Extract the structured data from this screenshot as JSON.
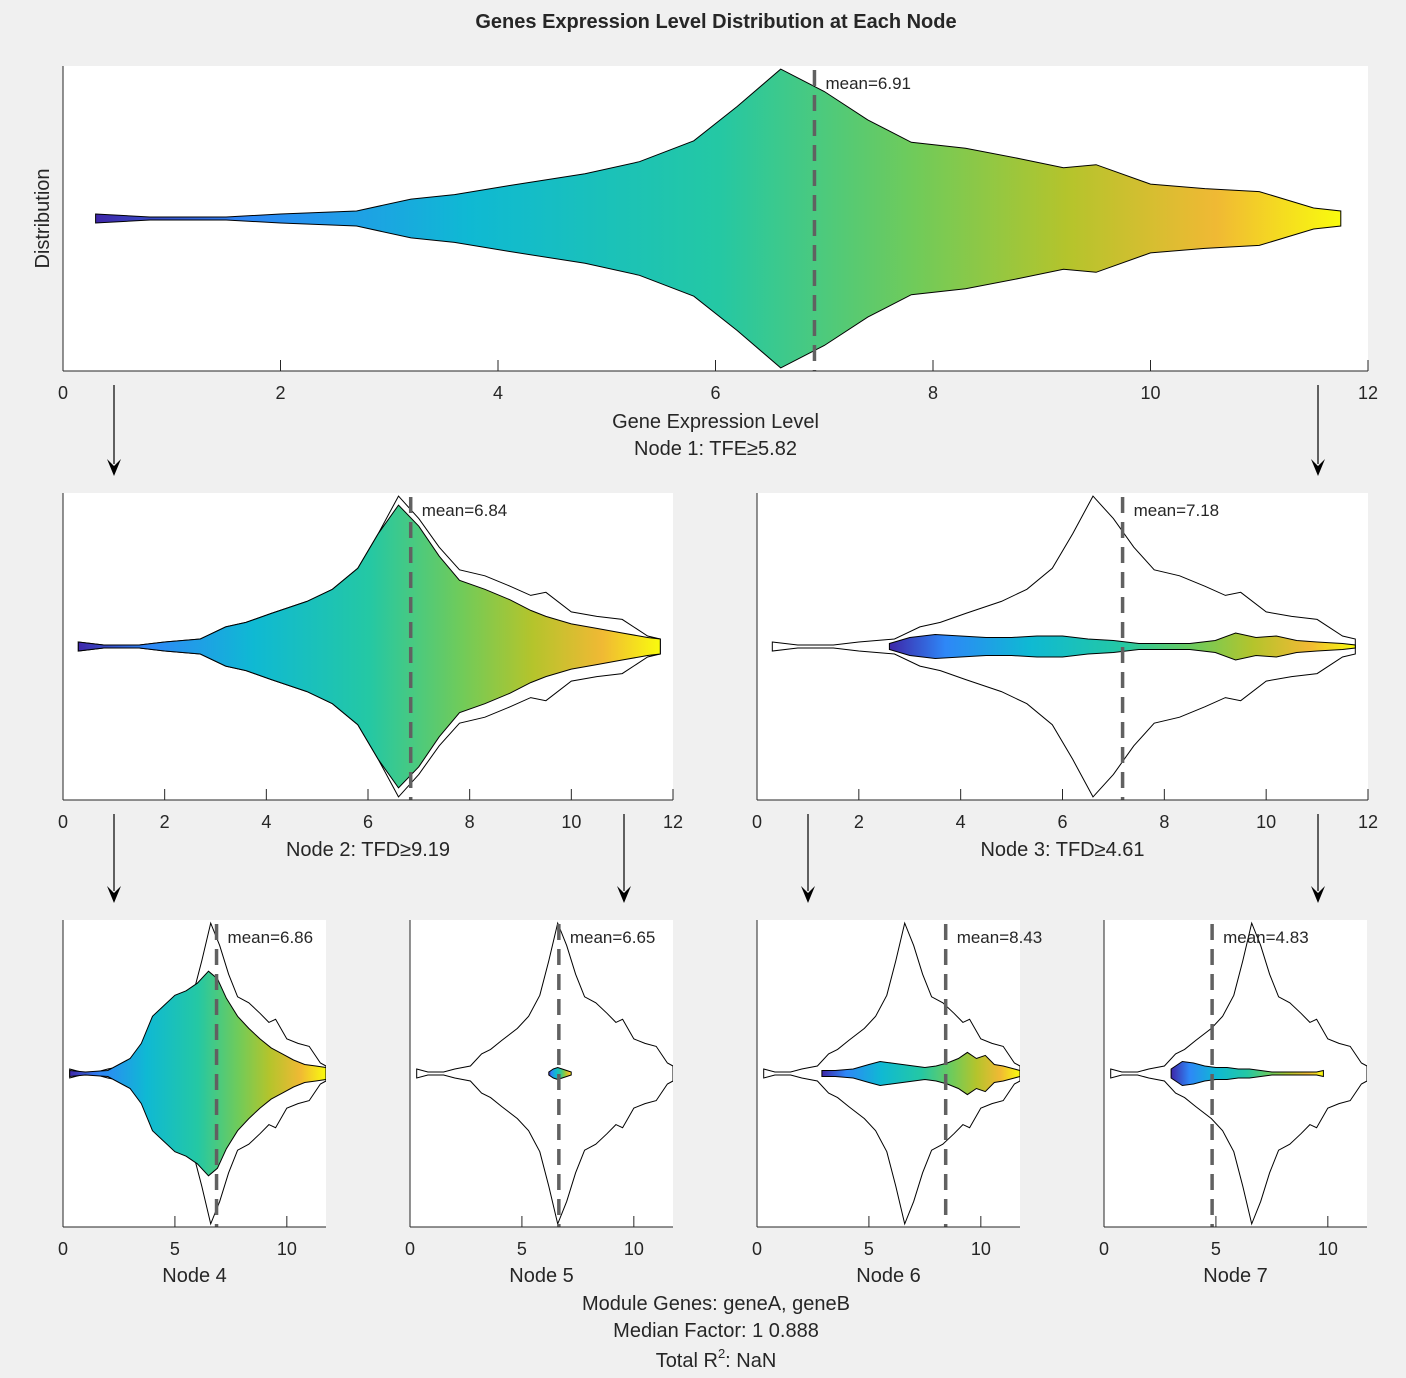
{
  "figure": {
    "title": "Genes Expression Level Distribution at Each Node",
    "footer": {
      "module_genes": "Module Genes: geneA, geneB",
      "median_factor": "Median Factor: 1      0.888",
      "total_r2_prefix": "Total R",
      "total_r2_sup": "2",
      "total_r2_suffix": ": NaN"
    },
    "colors": {
      "background": "#f0f0f0",
      "axes_bg": "#ffffff",
      "mean_line": "#616161",
      "outline": "#000000",
      "colormap": [
        "#3e26a8",
        "#2e87f7",
        "#0fb9d3",
        "#24c8a4",
        "#71cb59",
        "#b4c42c",
        "#f0b934",
        "#f9fb0e"
      ]
    }
  },
  "chart_data": [
    {
      "id": "node1",
      "type": "violin",
      "ylabel": "Distribution",
      "xlabel": "Gene Expression Level",
      "node_label": "Node 1: TFE≥5.82",
      "xlim": [
        0,
        12
      ],
      "xticks": [
        0,
        2,
        4,
        6,
        8,
        10,
        12
      ],
      "filled_range": [
        0.3,
        11.75
      ],
      "mean": 6.91,
      "mean_label": "mean=6.91",
      "show_parent_outline": false,
      "density": [
        [
          0.3,
          0.03
        ],
        [
          0.8,
          0.01
        ],
        [
          1.5,
          0.01
        ],
        [
          2.0,
          0.03
        ],
        [
          2.7,
          0.05
        ],
        [
          3.2,
          0.13
        ],
        [
          3.6,
          0.16
        ],
        [
          4.1,
          0.22
        ],
        [
          4.8,
          0.3
        ],
        [
          5.3,
          0.38
        ],
        [
          5.8,
          0.52
        ],
        [
          6.2,
          0.75
        ],
        [
          6.6,
          1.0
        ],
        [
          7.0,
          0.85
        ],
        [
          7.4,
          0.66
        ],
        [
          7.8,
          0.51
        ],
        [
          8.3,
          0.47
        ],
        [
          8.8,
          0.4
        ],
        [
          9.2,
          0.34
        ],
        [
          9.5,
          0.36
        ],
        [
          10.0,
          0.23
        ],
        [
          10.5,
          0.2
        ],
        [
          11.0,
          0.18
        ],
        [
          11.5,
          0.07
        ],
        [
          11.75,
          0.05
        ]
      ]
    },
    {
      "id": "node2",
      "type": "violin",
      "node_label": "Node 2: TFD≥9.19",
      "xlim": [
        0,
        12
      ],
      "xticks": [
        0,
        2,
        4,
        6,
        8,
        10,
        12
      ],
      "filled_range": [
        0.3,
        11.75
      ],
      "mean": 6.84,
      "mean_label": "mean=6.84",
      "show_parent_outline": true,
      "density": [
        [
          0.3,
          0.03
        ],
        [
          0.8,
          0.01
        ],
        [
          1.5,
          0.01
        ],
        [
          2.0,
          0.03
        ],
        [
          2.7,
          0.05
        ],
        [
          3.2,
          0.13
        ],
        [
          3.6,
          0.16
        ],
        [
          4.1,
          0.22
        ],
        [
          4.8,
          0.3
        ],
        [
          5.3,
          0.38
        ],
        [
          5.8,
          0.52
        ],
        [
          6.2,
          0.75
        ],
        [
          6.6,
          0.94
        ],
        [
          7.0,
          0.8
        ],
        [
          7.4,
          0.6
        ],
        [
          7.8,
          0.44
        ],
        [
          8.3,
          0.38
        ],
        [
          8.8,
          0.31
        ],
        [
          9.2,
          0.24
        ],
        [
          9.5,
          0.2
        ],
        [
          10.0,
          0.15
        ],
        [
          10.5,
          0.12
        ],
        [
          11.0,
          0.09
        ],
        [
          11.5,
          0.06
        ],
        [
          11.75,
          0.05
        ]
      ]
    },
    {
      "id": "node3",
      "type": "violin",
      "node_label": "Node 3: TFD≥4.61",
      "xlim": [
        0,
        12
      ],
      "xticks": [
        0,
        2,
        4,
        6,
        8,
        10,
        12
      ],
      "filled_range": [
        2.6,
        11.75
      ],
      "mean": 7.18,
      "mean_label": "mean=7.18",
      "show_parent_outline": true,
      "density": [
        [
          2.6,
          0.02
        ],
        [
          3.0,
          0.06
        ],
        [
          3.5,
          0.08
        ],
        [
          4.0,
          0.07
        ],
        [
          4.5,
          0.06
        ],
        [
          5.0,
          0.06
        ],
        [
          5.5,
          0.07
        ],
        [
          6.0,
          0.07
        ],
        [
          6.5,
          0.05
        ],
        [
          7.0,
          0.04
        ],
        [
          7.5,
          0.02
        ],
        [
          8.0,
          0.02
        ],
        [
          8.5,
          0.02
        ],
        [
          9.0,
          0.04
        ],
        [
          9.4,
          0.09
        ],
        [
          9.8,
          0.06
        ],
        [
          10.2,
          0.07
        ],
        [
          10.6,
          0.04
        ],
        [
          11.0,
          0.03
        ],
        [
          11.5,
          0.02
        ],
        [
          11.75,
          0.01
        ]
      ]
    },
    {
      "id": "node4",
      "type": "violin",
      "node_label": "Node 4",
      "xlim": [
        0,
        11.75
      ],
      "xticks": [
        0,
        5,
        10
      ],
      "filled_range": [
        0.3,
        11.75
      ],
      "mean": 6.86,
      "mean_label": "mean=6.86",
      "show_parent_outline": true,
      "density": [
        [
          0.3,
          0.02
        ],
        [
          1.0,
          0.01
        ],
        [
          2.0,
          0.02
        ],
        [
          3.0,
          0.1
        ],
        [
          3.5,
          0.2
        ],
        [
          4.0,
          0.38
        ],
        [
          4.5,
          0.45
        ],
        [
          5.0,
          0.52
        ],
        [
          5.5,
          0.55
        ],
        [
          6.0,
          0.6
        ],
        [
          6.5,
          0.68
        ],
        [
          6.9,
          0.63
        ],
        [
          7.3,
          0.5
        ],
        [
          7.8,
          0.38
        ],
        [
          8.3,
          0.3
        ],
        [
          8.8,
          0.23
        ],
        [
          9.3,
          0.17
        ],
        [
          9.8,
          0.13
        ],
        [
          10.3,
          0.09
        ],
        [
          10.8,
          0.06
        ],
        [
          11.3,
          0.05
        ],
        [
          11.75,
          0.04
        ]
      ]
    },
    {
      "id": "node5",
      "type": "violin",
      "node_label": "Node 5",
      "xlim": [
        0,
        11.75
      ],
      "xticks": [
        0,
        5,
        10
      ],
      "filled_range": [
        6.2,
        7.2
      ],
      "mean": 6.65,
      "mean_label": "mean=6.65",
      "show_parent_outline": true,
      "density": [
        [
          6.2,
          0.01
        ],
        [
          6.4,
          0.03
        ],
        [
          6.6,
          0.04
        ],
        [
          6.8,
          0.03
        ],
        [
          7.0,
          0.02
        ],
        [
          7.2,
          0.01
        ]
      ]
    },
    {
      "id": "node6",
      "type": "violin",
      "node_label": "Node 6",
      "xlim": [
        0,
        11.75
      ],
      "xticks": [
        0,
        5,
        10
      ],
      "filled_range": [
        2.9,
        11.75
      ],
      "mean": 8.43,
      "mean_label": "mean=8.43",
      "show_parent_outline": true,
      "density": [
        [
          2.9,
          0.02
        ],
        [
          3.5,
          0.02
        ],
        [
          4.3,
          0.03
        ],
        [
          5.0,
          0.06
        ],
        [
          5.5,
          0.08
        ],
        [
          6.0,
          0.07
        ],
        [
          6.5,
          0.06
        ],
        [
          7.0,
          0.05
        ],
        [
          7.5,
          0.04
        ],
        [
          8.0,
          0.05
        ],
        [
          8.5,
          0.07
        ],
        [
          9.0,
          0.1
        ],
        [
          9.4,
          0.14
        ],
        [
          9.8,
          0.1
        ],
        [
          10.2,
          0.12
        ],
        [
          10.6,
          0.06
        ],
        [
          11.0,
          0.05
        ],
        [
          11.5,
          0.03
        ],
        [
          11.75,
          0.02
        ]
      ]
    },
    {
      "id": "node7",
      "type": "violin",
      "node_label": "Node 7",
      "xlim": [
        0,
        11.75
      ],
      "xticks": [
        0,
        5,
        10
      ],
      "filled_range": [
        3.0,
        9.8
      ],
      "mean": 4.83,
      "mean_label": "mean=4.83",
      "show_parent_outline": true,
      "density": [
        [
          3.0,
          0.03
        ],
        [
          3.5,
          0.08
        ],
        [
          4.0,
          0.07
        ],
        [
          4.5,
          0.05
        ],
        [
          5.0,
          0.04
        ],
        [
          5.5,
          0.04
        ],
        [
          6.0,
          0.03
        ],
        [
          6.5,
          0.03
        ],
        [
          7.0,
          0.02
        ],
        [
          7.5,
          0.01
        ],
        [
          8.0,
          0.01
        ],
        [
          8.5,
          0.01
        ],
        [
          9.0,
          0.01
        ],
        [
          9.5,
          0.01
        ],
        [
          9.8,
          0.02
        ]
      ]
    }
  ],
  "parent_outline": [
    [
      0.3,
      0.03
    ],
    [
      0.8,
      0.01
    ],
    [
      1.5,
      0.01
    ],
    [
      2.0,
      0.03
    ],
    [
      2.7,
      0.05
    ],
    [
      3.2,
      0.13
    ],
    [
      3.6,
      0.16
    ],
    [
      4.1,
      0.22
    ],
    [
      4.8,
      0.3
    ],
    [
      5.3,
      0.38
    ],
    [
      5.8,
      0.52
    ],
    [
      6.2,
      0.75
    ],
    [
      6.6,
      1.0
    ],
    [
      7.0,
      0.85
    ],
    [
      7.4,
      0.66
    ],
    [
      7.8,
      0.51
    ],
    [
      8.3,
      0.47
    ],
    [
      8.8,
      0.4
    ],
    [
      9.2,
      0.34
    ],
    [
      9.5,
      0.36
    ],
    [
      10.0,
      0.23
    ],
    [
      10.5,
      0.2
    ],
    [
      11.0,
      0.18
    ],
    [
      11.5,
      0.07
    ],
    [
      11.75,
      0.05
    ]
  ]
}
